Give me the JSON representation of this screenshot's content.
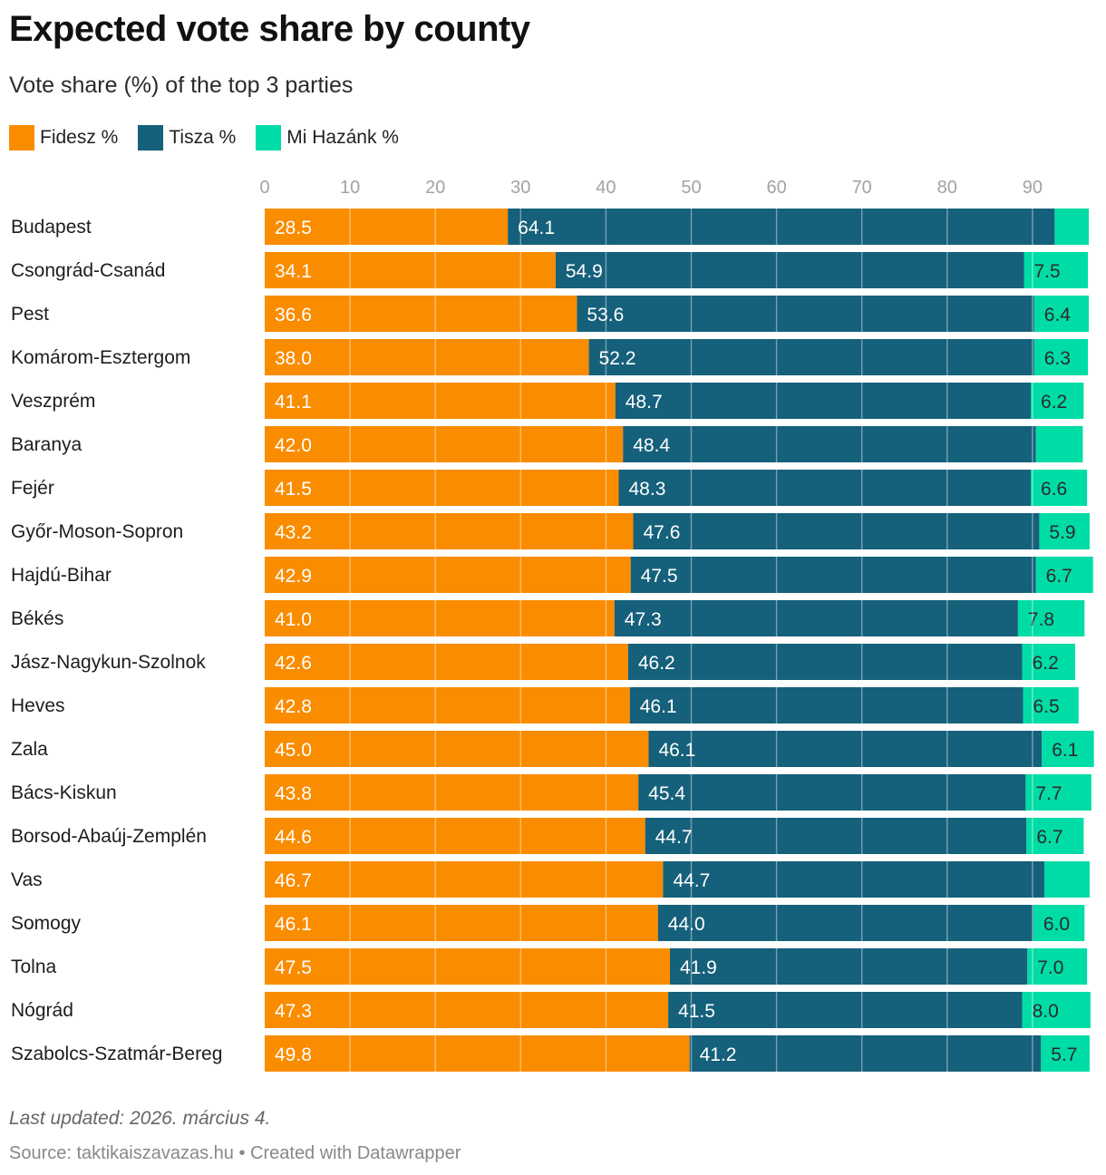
{
  "header": {
    "title": "Expected vote share by county",
    "subtitle": "Vote share (%) of the top 3 parties"
  },
  "legend": [
    {
      "label": "Fidesz %",
      "color": "#fa8c00"
    },
    {
      "label": "Tisza %",
      "color": "#15607a"
    },
    {
      "label": "Mi Hazánk %",
      "color": "#00dca6"
    }
  ],
  "footer": {
    "note": "Last updated: 2026. március 4.",
    "source_label": "Source: taktikaiszavazas.hu",
    "separator": " • ",
    "credit": "Created with Datawrapper"
  },
  "chart_data": {
    "type": "bar",
    "orientation": "horizontal",
    "stacked": true,
    "title": "Expected vote share by county",
    "subtitle": "Vote share (%) of the top 3 parties",
    "xlabel": "",
    "ylabel": "",
    "xlim": [
      0,
      97
    ],
    "x_ticks": [
      0,
      10,
      20,
      30,
      40,
      50,
      60,
      70,
      80,
      90
    ],
    "grid": true,
    "legend_position": "top-left",
    "categories": [
      "Budapest",
      "Csongrád-Csanád",
      "Pest",
      "Komárom-Esztergom",
      "Veszprém",
      "Baranya",
      "Fejér",
      "Győr-Moson-Sopron",
      "Hajdú-Bihar",
      "Békés",
      "Jász-Nagykun-Szolnok",
      "Heves",
      "Zala",
      "Bács-Kiskun",
      "Borsod-Abaúj-Zemplén",
      "Vas",
      "Somogy",
      "Tolna",
      "Nógrád",
      "Szabolcs-Szatmár-Bereg"
    ],
    "series": [
      {
        "name": "Fidesz %",
        "color": "#fa8c00",
        "label_color": "#ffffff",
        "values": [
          28.5,
          34.1,
          36.6,
          38.0,
          41.1,
          42.0,
          41.5,
          43.2,
          42.9,
          41.0,
          42.6,
          42.8,
          45.0,
          43.8,
          44.6,
          46.7,
          46.1,
          47.5,
          47.3,
          49.8
        ],
        "labels_shown": [
          true,
          true,
          true,
          true,
          true,
          true,
          true,
          true,
          true,
          true,
          true,
          true,
          true,
          true,
          true,
          true,
          true,
          true,
          true,
          true
        ]
      },
      {
        "name": "Tisza %",
        "color": "#15607a",
        "label_color": "#ffffff",
        "values": [
          64.1,
          54.9,
          53.6,
          52.2,
          48.7,
          48.4,
          48.3,
          47.6,
          47.5,
          47.3,
          46.2,
          46.1,
          46.1,
          45.4,
          44.7,
          44.7,
          44.0,
          41.9,
          41.5,
          41.2
        ],
        "labels_shown": [
          true,
          true,
          true,
          true,
          true,
          true,
          true,
          true,
          true,
          true,
          true,
          true,
          true,
          true,
          true,
          true,
          true,
          true,
          true,
          true
        ]
      },
      {
        "name": "Mi Hazánk %",
        "color": "#00dca6",
        "label_color": "#2b2b2b",
        "values": [
          4.0,
          7.5,
          6.4,
          6.3,
          6.2,
          5.5,
          6.6,
          5.9,
          6.7,
          7.8,
          6.2,
          6.5,
          6.1,
          7.7,
          6.7,
          5.3,
          6.0,
          7.0,
          8.0,
          5.7
        ],
        "labels_shown": [
          false,
          true,
          true,
          true,
          true,
          false,
          true,
          true,
          true,
          true,
          true,
          true,
          true,
          true,
          true,
          false,
          true,
          true,
          true,
          true
        ]
      }
    ]
  }
}
